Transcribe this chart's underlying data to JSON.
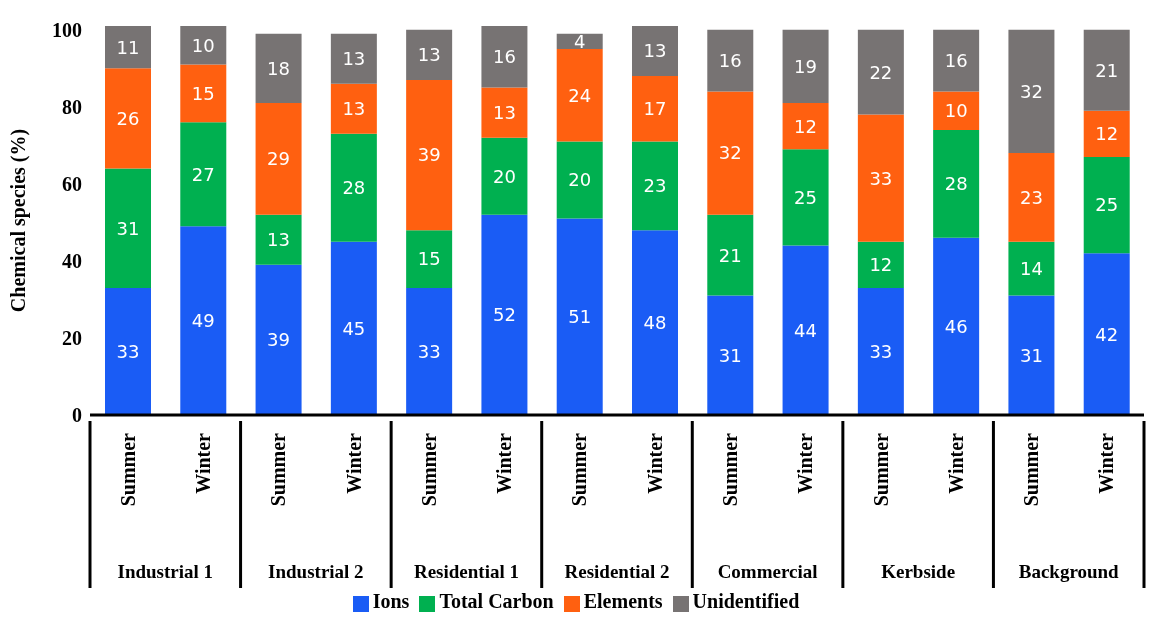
{
  "chart_data": {
    "type": "bar",
    "stacked": true,
    "ylabel": "Chemical species (%)",
    "categories": [
      "Summer",
      "Winter",
      "Summer",
      "Winter",
      "Summer",
      "Winter",
      "Summer",
      "Winter",
      "Summer",
      "Winter",
      "Summer",
      "Winter",
      "Summer",
      "Winter"
    ],
    "annotations": [
      "Industrial 1",
      "Industrial 2",
      "Residential 1",
      "Residential 2",
      "Commercial",
      "Kerbside",
      "Background"
    ],
    "series": [
      {
        "name": "Ions",
        "color": "#1a5cf5",
        "values": [
          33,
          49,
          39,
          45,
          33,
          52,
          51,
          48,
          31,
          44,
          33,
          46,
          31,
          42
        ]
      },
      {
        "name": "Total Carbon",
        "color": "#00b050",
        "values": [
          31,
          27,
          13,
          28,
          15,
          20,
          20,
          23,
          21,
          25,
          12,
          28,
          14,
          25
        ]
      },
      {
        "name": "Elements",
        "color": "#ff6010",
        "values": [
          26,
          15,
          29,
          13,
          39,
          13,
          24,
          17,
          32,
          12,
          33,
          10,
          23,
          12
        ]
      },
      {
        "name": "Unidentified",
        "color": "#777373",
        "values": [
          11,
          10,
          18,
          13,
          13,
          16,
          4,
          13,
          16,
          19,
          22,
          16,
          32,
          21
        ]
      }
    ],
    "ylim": [
      0,
      101
    ],
    "yticks": [
      0,
      20,
      40,
      60,
      80,
      100
    ],
    "grid": false,
    "legend": "bottom",
    "data_labels": true
  }
}
